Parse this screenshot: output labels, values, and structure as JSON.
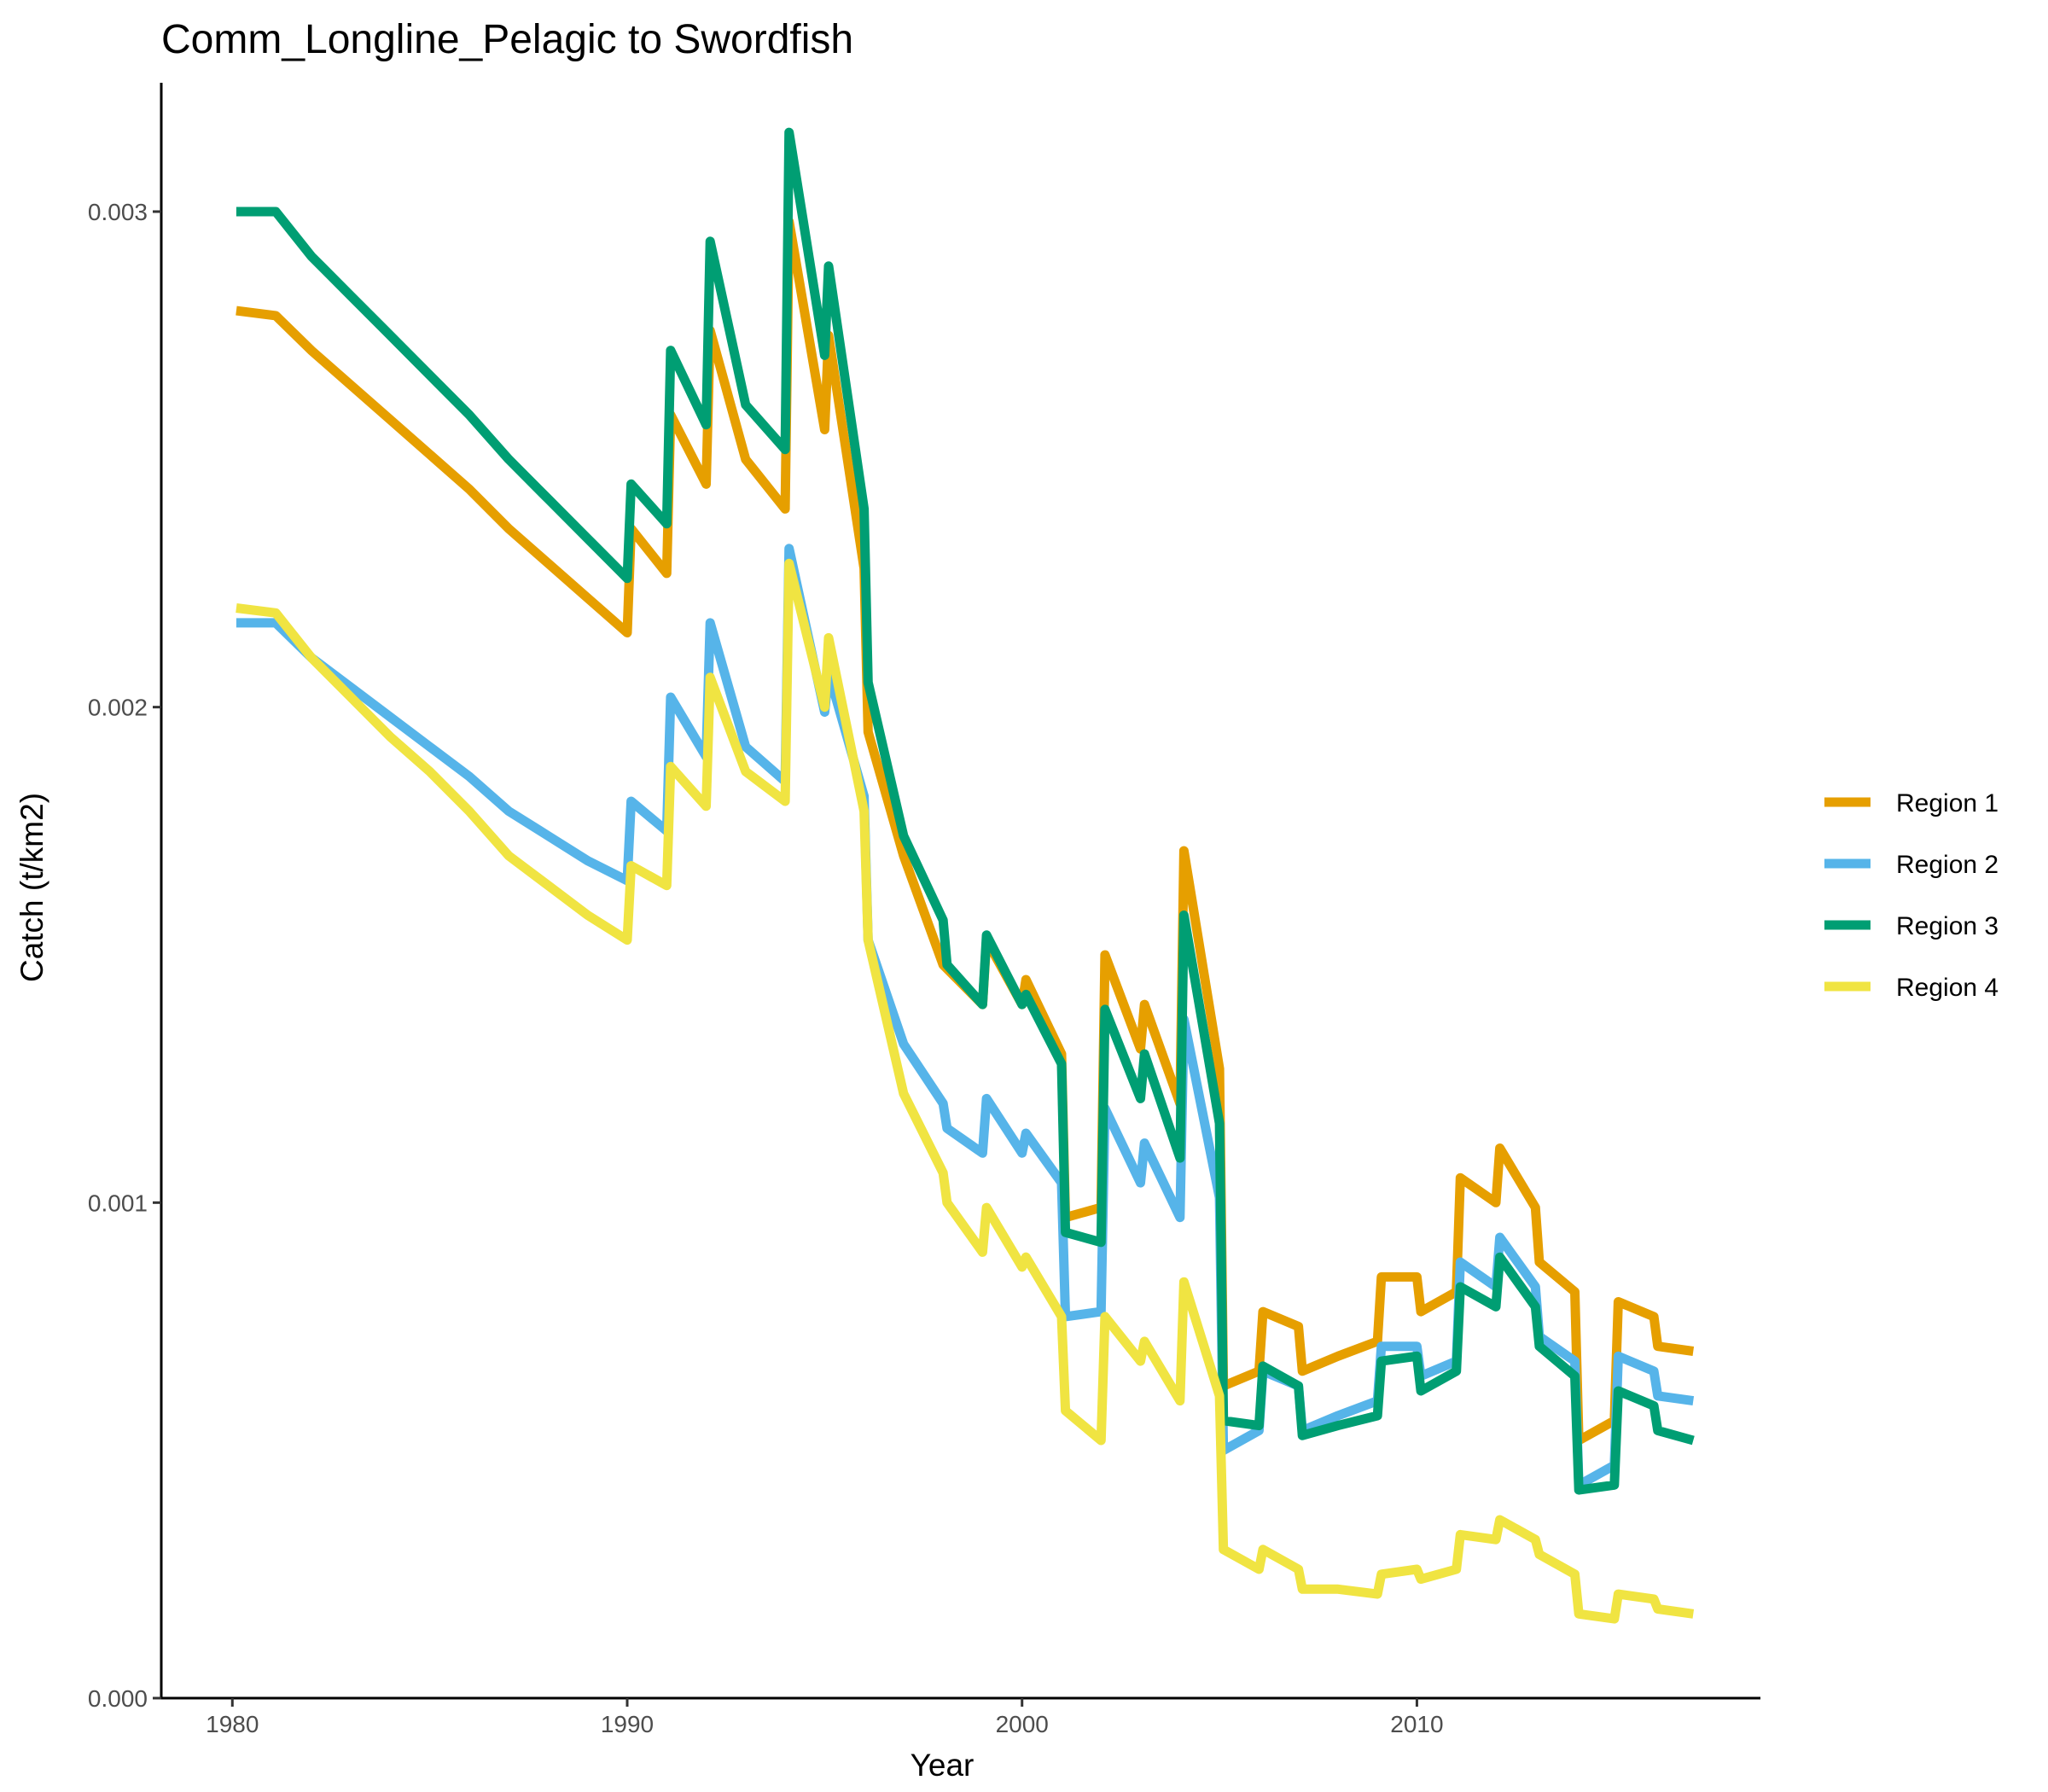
{
  "chart_data": {
    "type": "line",
    "title": "Comm_Longline_Pelagic to Swordfish",
    "xlabel": "Year",
    "ylabel": "Catch (t/km2)",
    "xlim": [
      1978.2,
      2018.7
    ],
    "ylim": [
      0,
      0.00326
    ],
    "xticks": [
      1980,
      1990,
      2000,
      2010
    ],
    "xtick_labels": [
      "1980",
      "1990",
      "2000",
      "2010"
    ],
    "yticks": [
      0,
      0.001,
      0.002,
      0.003
    ],
    "ytick_labels": [
      "0.000",
      "0.001",
      "0.002",
      "0.003"
    ],
    "grid": false,
    "legend_position": "right",
    "series": [
      {
        "name": "Region 1",
        "color": "#E69F00",
        "points": [
          [
            1980.1,
            0.0028
          ],
          [
            1981.1,
            0.00279
          ],
          [
            1982,
            0.00272
          ],
          [
            1983,
            0.00265
          ],
          [
            1984,
            0.00258
          ],
          [
            1985,
            0.00251
          ],
          [
            1986,
            0.00244
          ],
          [
            1987,
            0.00236
          ],
          [
            1988,
            0.00229
          ],
          [
            1989,
            0.00222
          ],
          [
            1990,
            0.00215
          ],
          [
            1990.1,
            0.00236
          ],
          [
            1991,
            0.00227
          ],
          [
            1991.1,
            0.00259
          ],
          [
            1992,
            0.00245
          ],
          [
            1992.1,
            0.00276
          ],
          [
            1993,
            0.0025
          ],
          [
            1994,
            0.0024
          ],
          [
            1994.1,
            0.00298
          ],
          [
            1995,
            0.00256
          ],
          [
            1995.1,
            0.00275
          ],
          [
            1996,
            0.00228
          ],
          [
            1996.1,
            0.00195
          ],
          [
            1997,
            0.0017
          ],
          [
            1998,
            0.00148
          ],
          [
            1999,
            0.0014
          ],
          [
            1999.1,
            0.00153
          ],
          [
            2000,
            0.0014
          ],
          [
            2000.1,
            0.00145
          ],
          [
            2001,
            0.0013
          ],
          [
            2001.1,
            0.00097
          ],
          [
            2002,
            0.00099
          ],
          [
            2002.1,
            0.0015
          ],
          [
            2003,
            0.00131
          ],
          [
            2003.1,
            0.0014
          ],
          [
            2004,
            0.0012
          ],
          [
            2004.1,
            0.00171
          ],
          [
            2005,
            0.00127
          ],
          [
            2005.1,
            0.00063
          ],
          [
            2006,
            0.00066
          ],
          [
            2006.1,
            0.00078
          ],
          [
            2007,
            0.00075
          ],
          [
            2007.1,
            0.00066
          ],
          [
            2008,
            0.00069
          ],
          [
            2009,
            0.00072
          ],
          [
            2009.1,
            0.00085
          ],
          [
            2010,
            0.00085
          ],
          [
            2010.1,
            0.00078
          ],
          [
            2011,
            0.00082
          ],
          [
            2011.1,
            0.00105
          ],
          [
            2012,
            0.001
          ],
          [
            2012.1,
            0.00111
          ],
          [
            2013,
            0.00099
          ],
          [
            2013.1,
            0.00088
          ],
          [
            2014,
            0.00082
          ],
          [
            2014.1,
            0.00052
          ],
          [
            2015,
            0.00056
          ],
          [
            2015.1,
            0.0008
          ],
          [
            2016,
            0.00077
          ],
          [
            2016.1,
            0.00071
          ],
          [
            2017,
            0.0007
          ]
        ]
      },
      {
        "name": "Region 2",
        "color": "#56B4E9",
        "points": [
          [
            1980.1,
            0.00217
          ],
          [
            1981.1,
            0.00217
          ],
          [
            1982,
            0.0021
          ],
          [
            1983,
            0.00204
          ],
          [
            1984,
            0.00198
          ],
          [
            1985,
            0.00192
          ],
          [
            1986,
            0.00186
          ],
          [
            1987,
            0.00179
          ],
          [
            1988,
            0.00174
          ],
          [
            1989,
            0.00169
          ],
          [
            1990,
            0.00165
          ],
          [
            1990.1,
            0.00181
          ],
          [
            1991,
            0.00175
          ],
          [
            1991.1,
            0.00202
          ],
          [
            1992,
            0.0019
          ],
          [
            1992.1,
            0.00217
          ],
          [
            1993,
            0.00192
          ],
          [
            1994,
            0.00185
          ],
          [
            1994.1,
            0.00232
          ],
          [
            1995,
            0.00199
          ],
          [
            1995.1,
            0.00207
          ],
          [
            1996,
            0.00182
          ],
          [
            1996.1,
            0.00153
          ],
          [
            1997,
            0.00132
          ],
          [
            1998,
            0.0012
          ],
          [
            1998.1,
            0.00115
          ],
          [
            1999,
            0.0011
          ],
          [
            1999.1,
            0.00121
          ],
          [
            2000,
            0.0011
          ],
          [
            2000.1,
            0.00114
          ],
          [
            2001,
            0.00104
          ],
          [
            2001.1,
            0.00077
          ],
          [
            2002,
            0.00078
          ],
          [
            2002.1,
            0.00119
          ],
          [
            2003,
            0.00104
          ],
          [
            2003.1,
            0.00112
          ],
          [
            2004,
            0.00097
          ],
          [
            2004.1,
            0.00137
          ],
          [
            2005,
            0.00101
          ],
          [
            2005.1,
            0.0005
          ],
          [
            2006,
            0.00054
          ],
          [
            2006.1,
            0.00066
          ],
          [
            2007,
            0.00063
          ],
          [
            2007.1,
            0.00054
          ],
          [
            2008,
            0.00057
          ],
          [
            2009,
            0.0006
          ],
          [
            2009.1,
            0.00071
          ],
          [
            2010,
            0.00071
          ],
          [
            2010.1,
            0.00065
          ],
          [
            2011,
            0.00068
          ],
          [
            2011.1,
            0.00088
          ],
          [
            2012,
            0.00083
          ],
          [
            2012.1,
            0.00093
          ],
          [
            2013,
            0.00083
          ],
          [
            2013.1,
            0.00073
          ],
          [
            2014,
            0.00068
          ],
          [
            2014.1,
            0.00043
          ],
          [
            2015,
            0.00047
          ],
          [
            2015.1,
            0.00069
          ],
          [
            2016,
            0.00066
          ],
          [
            2016.1,
            0.00061
          ],
          [
            2017,
            0.0006
          ]
        ]
      },
      {
        "name": "Region 3",
        "color": "#009E73",
        "points": [
          [
            1980.1,
            0.003
          ],
          [
            1981.1,
            0.003
          ],
          [
            1982,
            0.00291
          ],
          [
            1983,
            0.00283
          ],
          [
            1984,
            0.00275
          ],
          [
            1985,
            0.00267
          ],
          [
            1986,
            0.00259
          ],
          [
            1987,
            0.0025
          ],
          [
            1988,
            0.00242
          ],
          [
            1989,
            0.00234
          ],
          [
            1990,
            0.00226
          ],
          [
            1990.1,
            0.00245
          ],
          [
            1991,
            0.00237
          ],
          [
            1991.1,
            0.00272
          ],
          [
            1992,
            0.00257
          ],
          [
            1992.1,
            0.00294
          ],
          [
            1993,
            0.00261
          ],
          [
            1994,
            0.00252
          ],
          [
            1994.1,
            0.00316
          ],
          [
            1995,
            0.00271
          ],
          [
            1995.1,
            0.00289
          ],
          [
            1996,
            0.0024
          ],
          [
            1996.1,
            0.00205
          ],
          [
            1997,
            0.00174
          ],
          [
            1998,
            0.00157
          ],
          [
            1998.1,
            0.00148
          ],
          [
            1999,
            0.0014
          ],
          [
            1999.1,
            0.00154
          ],
          [
            2000,
            0.0014
          ],
          [
            2000.1,
            0.00142
          ],
          [
            2001,
            0.00128
          ],
          [
            2001.1,
            0.00094
          ],
          [
            2002,
            0.00092
          ],
          [
            2002.1,
            0.00139
          ],
          [
            2003,
            0.00121
          ],
          [
            2003.1,
            0.0013
          ],
          [
            2004,
            0.00109
          ],
          [
            2004.1,
            0.00158
          ],
          [
            2005,
            0.00116
          ],
          [
            2005.1,
            0.00056
          ],
          [
            2006,
            0.00055
          ],
          [
            2006.1,
            0.00067
          ],
          [
            2007,
            0.00063
          ],
          [
            2007.1,
            0.00053
          ],
          [
            2008,
            0.00055
          ],
          [
            2009,
            0.00057
          ],
          [
            2009.1,
            0.00068
          ],
          [
            2010,
            0.00069
          ],
          [
            2010.1,
            0.00062
          ],
          [
            2011,
            0.00066
          ],
          [
            2011.1,
            0.00083
          ],
          [
            2012,
            0.00079
          ],
          [
            2012.1,
            0.00089
          ],
          [
            2013,
            0.00079
          ],
          [
            2013.1,
            0.00071
          ],
          [
            2014,
            0.00065
          ],
          [
            2014.1,
            0.00042
          ],
          [
            2015,
            0.00043
          ],
          [
            2015.1,
            0.00062
          ],
          [
            2016,
            0.00059
          ],
          [
            2016.1,
            0.00054
          ],
          [
            2017,
            0.00052
          ]
        ]
      },
      {
        "name": "Region 4",
        "color": "#F0E442",
        "points": [
          [
            1980.1,
            0.0022
          ],
          [
            1981.1,
            0.00219
          ],
          [
            1982,
            0.0021
          ],
          [
            1983,
            0.00202
          ],
          [
            1984,
            0.00194
          ],
          [
            1985,
            0.00187
          ],
          [
            1986,
            0.00179
          ],
          [
            1987,
            0.0017
          ],
          [
            1988,
            0.00164
          ],
          [
            1989,
            0.00158
          ],
          [
            1990,
            0.00153
          ],
          [
            1990.1,
            0.00168
          ],
          [
            1991,
            0.00164
          ],
          [
            1991.1,
            0.00188
          ],
          [
            1992,
            0.0018
          ],
          [
            1992.1,
            0.00206
          ],
          [
            1993,
            0.00187
          ],
          [
            1994,
            0.00181
          ],
          [
            1994.1,
            0.00229
          ],
          [
            1995,
            0.002
          ],
          [
            1995.1,
            0.00214
          ],
          [
            1996,
            0.00179
          ],
          [
            1996.1,
            0.00153
          ],
          [
            1997,
            0.00122
          ],
          [
            1998,
            0.00106
          ],
          [
            1998.1,
            0.001
          ],
          [
            1999,
            0.0009
          ],
          [
            1999.1,
            0.00099
          ],
          [
            2000,
            0.00087
          ],
          [
            2000.1,
            0.00089
          ],
          [
            2001,
            0.00077
          ],
          [
            2001.1,
            0.00058
          ],
          [
            2002,
            0.00052
          ],
          [
            2002.1,
            0.00077
          ],
          [
            2003,
            0.00068
          ],
          [
            2003.1,
            0.00072
          ],
          [
            2004,
            0.0006
          ],
          [
            2004.1,
            0.00084
          ],
          [
            2005,
            0.00061
          ],
          [
            2005.1,
            0.0003
          ],
          [
            2006,
            0.00026
          ],
          [
            2006.1,
            0.0003
          ],
          [
            2007,
            0.00026
          ],
          [
            2007.1,
            0.00022
          ],
          [
            2008,
            0.00022
          ],
          [
            2009,
            0.00021
          ],
          [
            2009.1,
            0.00025
          ],
          [
            2010,
            0.00026
          ],
          [
            2010.1,
            0.00024
          ],
          [
            2011,
            0.00026
          ],
          [
            2011.1,
            0.00033
          ],
          [
            2012,
            0.00032
          ],
          [
            2012.1,
            0.00036
          ],
          [
            2013,
            0.00032
          ],
          [
            2013.1,
            0.00029
          ],
          [
            2014,
            0.00025
          ],
          [
            2014.1,
            0.00017
          ],
          [
            2015,
            0.00016
          ],
          [
            2015.1,
            0.00021
          ],
          [
            2016,
            0.0002
          ],
          [
            2016.1,
            0.00018
          ],
          [
            2017,
            0.00017
          ]
        ]
      }
    ]
  }
}
